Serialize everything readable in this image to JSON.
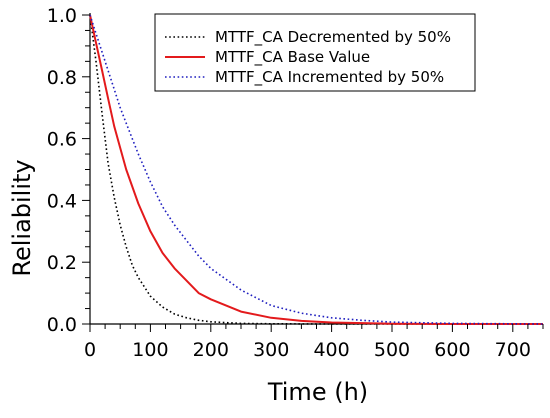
{
  "chart_data": {
    "type": "line",
    "xlabel": "Time (h)",
    "ylabel": "Reliability",
    "xlim": [
      0,
      750
    ],
    "ylim": [
      0,
      1.0
    ],
    "xticks": [
      "0",
      "100",
      "200",
      "300",
      "400",
      "500",
      "600",
      "700"
    ],
    "yticks": [
      "0.0",
      "0.2",
      "0.4",
      "0.6",
      "0.8",
      "1.0"
    ],
    "x_tick_values": [
      0,
      100,
      200,
      300,
      400,
      500,
      600,
      700
    ],
    "y_tick_values": [
      0,
      0.2,
      0.4,
      0.6,
      0.8,
      1.0
    ],
    "grid": false,
    "legend_position": "top-right",
    "series": [
      {
        "name": "MTTF_CA Decremented by 50%",
        "color": "#000000",
        "style": "dotted",
        "x": [
          0,
          10,
          20,
          30,
          40,
          50,
          60,
          70,
          80,
          90,
          100,
          120,
          140,
          160,
          180,
          200,
          250,
          300,
          400,
          500,
          600,
          750
        ],
        "values": [
          1.0,
          0.85,
          0.68,
          0.52,
          0.41,
          0.32,
          0.25,
          0.19,
          0.15,
          0.12,
          0.09,
          0.055,
          0.032,
          0.02,
          0.012,
          0.007,
          0.002,
          0.0005,
          0.0,
          0.0,
          0.0,
          0.0
        ]
      },
      {
        "name": "MTTF_CA Base Value",
        "color": "#e31a1c",
        "style": "solid",
        "x": [
          0,
          10,
          20,
          30,
          40,
          50,
          60,
          80,
          100,
          120,
          140,
          160,
          180,
          200,
          250,
          300,
          350,
          400,
          500,
          600,
          750
        ],
        "values": [
          1.0,
          0.91,
          0.82,
          0.73,
          0.64,
          0.57,
          0.5,
          0.39,
          0.3,
          0.23,
          0.18,
          0.14,
          0.1,
          0.08,
          0.04,
          0.02,
          0.01,
          0.005,
          0.001,
          0.0,
          0.0
        ]
      },
      {
        "name": "MTTF_CA Incremented by 50%",
        "color": "#1f1fbf",
        "style": "dotted",
        "x": [
          0,
          10,
          20,
          30,
          40,
          50,
          60,
          80,
          100,
          120,
          140,
          160,
          180,
          200,
          250,
          300,
          350,
          400,
          450,
          500,
          600,
          750
        ],
        "values": [
          1.0,
          0.94,
          0.88,
          0.82,
          0.76,
          0.7,
          0.65,
          0.55,
          0.46,
          0.38,
          0.32,
          0.27,
          0.22,
          0.18,
          0.11,
          0.06,
          0.035,
          0.02,
          0.012,
          0.006,
          0.002,
          0.0
        ]
      }
    ]
  }
}
